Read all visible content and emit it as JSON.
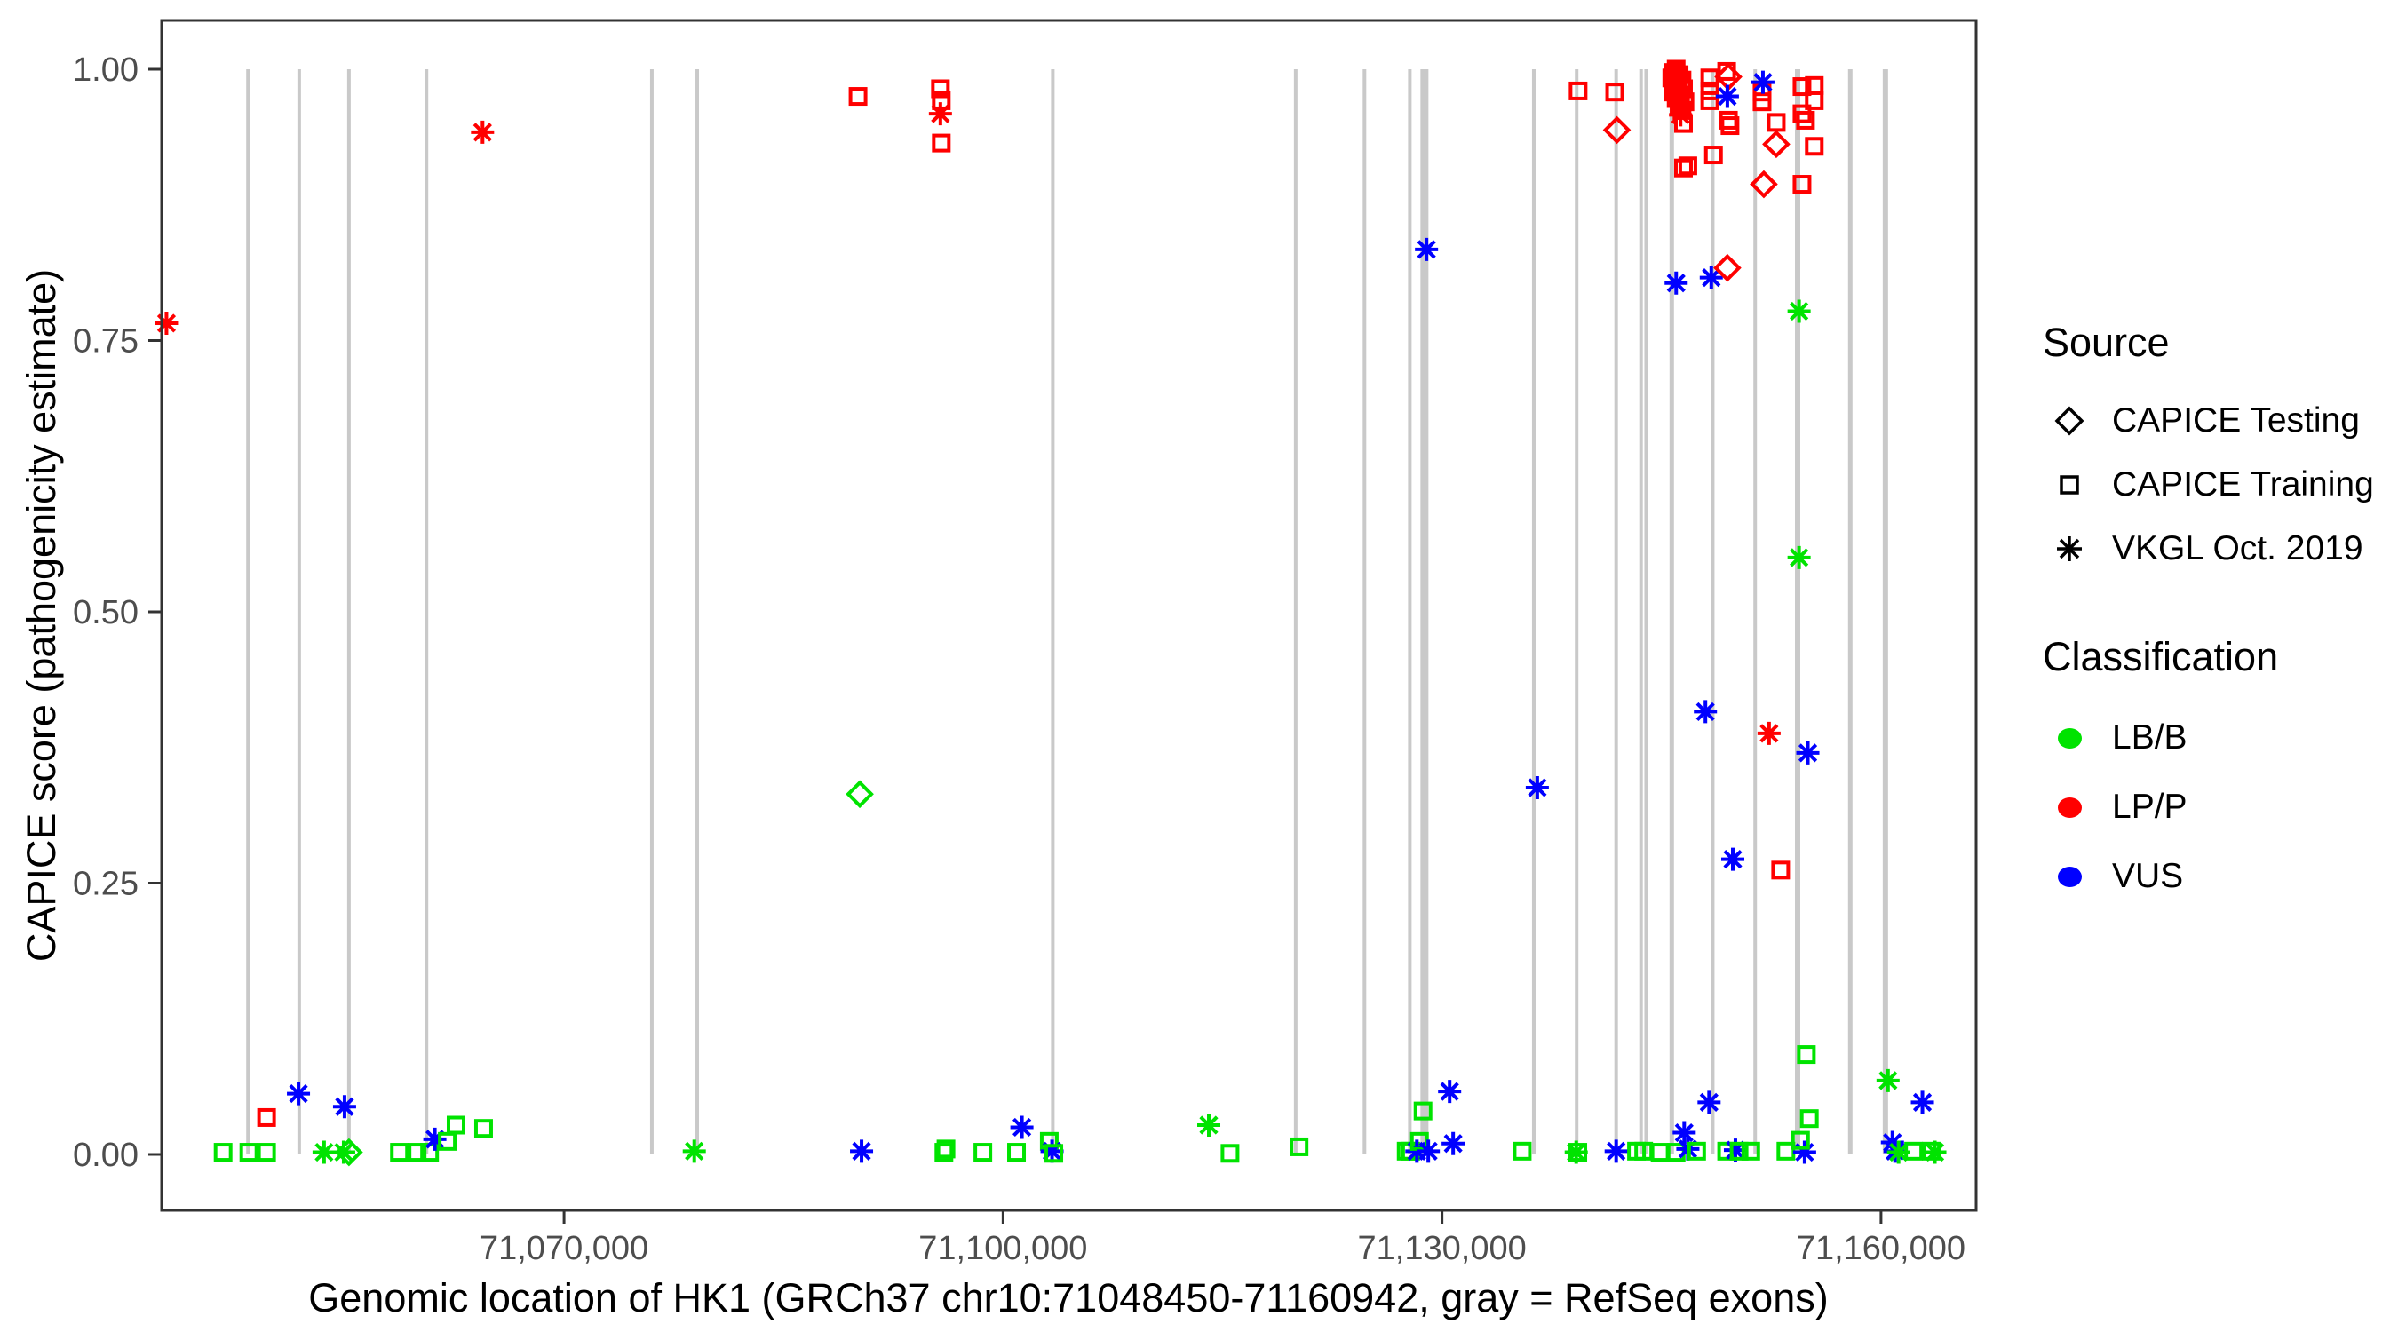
{
  "figure_name": "CAPICE score scatter plot for HK1",
  "axes": {
    "x_title": "Genomic location of HK1 (GRCh37 chr10:71048450-71160942, gray = RefSeq exons)",
    "y_title": "CAPICE score (pathogenicity estimate)"
  },
  "legend": {
    "source": {
      "title": "Source",
      "items": [
        {
          "label": "CAPICE Testing",
          "symbol": "diamond"
        },
        {
          "label": "CAPICE Training",
          "symbol": "square"
        },
        {
          "label": "VKGL Oct. 2019",
          "symbol": "asterisk"
        }
      ]
    },
    "classification": {
      "title": "Classification",
      "items": [
        {
          "label": "LB/B",
          "color": "#00E300"
        },
        {
          "label": "LP/P",
          "color": "#FF0000"
        },
        {
          "label": "VUS",
          "color": "#0000FF"
        }
      ]
    }
  },
  "chart_data": {
    "type": "scatter",
    "title": "",
    "xlabel": "Genomic location of HK1 (GRCh37 chr10:71048450-71160942, gray = RefSeq exons)",
    "ylabel": "CAPICE score (pathogenicity estimate)",
    "x_domain": [
      71042500,
      71166500
    ],
    "y_domain": [
      0.0,
      1.0
    ],
    "grid": "off",
    "legend_position": "right",
    "x_ticks": [
      {
        "value": 71070000,
        "label": "71,070,000"
      },
      {
        "value": 71100000,
        "label": "71,100,000"
      },
      {
        "value": 71130000,
        "label": "71,130,000"
      },
      {
        "value": 71160000,
        "label": "71,160,000"
      }
    ],
    "y_ticks": [
      {
        "value": 0.0,
        "label": "0.00"
      },
      {
        "value": 0.25,
        "label": "0.25"
      },
      {
        "value": 0.5,
        "label": "0.50"
      },
      {
        "value": 0.75,
        "label": "0.75"
      },
      {
        "value": 1.0,
        "label": "1.00"
      }
    ],
    "colors": {
      "LB/B": "#00E300",
      "LP/P": "#FF0000",
      "VUS": "#0000FF",
      "exon": "#C9C9C9",
      "axis": "#333333",
      "tick_label": "#4D4D4D"
    },
    "exons": [
      {
        "pos": 71048400,
        "w": 4
      },
      {
        "pos": 71051900,
        "w": 4
      },
      {
        "pos": 71055300,
        "w": 4
      },
      {
        "pos": 71060600,
        "w": 4
      },
      {
        "pos": 71076000,
        "w": 4
      },
      {
        "pos": 71079100,
        "w": 4
      },
      {
        "pos": 71103400,
        "w": 4
      },
      {
        "pos": 71120000,
        "w": 4
      },
      {
        "pos": 71124700,
        "w": 4
      },
      {
        "pos": 71127800,
        "w": 4
      },
      {
        "pos": 71128800,
        "w": 9
      },
      {
        "pos": 71136300,
        "w": 5
      },
      {
        "pos": 71139200,
        "w": 4
      },
      {
        "pos": 71141900,
        "w": 4
      },
      {
        "pos": 71143600,
        "w": 4
      },
      {
        "pos": 71143950,
        "w": 4
      },
      {
        "pos": 71145700,
        "w": 5
      },
      {
        "pos": 71148500,
        "w": 4
      },
      {
        "pos": 71151400,
        "w": 4
      },
      {
        "pos": 71154300,
        "w": 6
      },
      {
        "pos": 71157900,
        "w": 5
      },
      {
        "pos": 71160300,
        "w": 6
      }
    ],
    "points": [
      {
        "g": 71046700,
        "v": 0.002,
        "source": "training",
        "class": "LB/B"
      },
      {
        "g": 71048460,
        "v": 0.002,
        "source": "training",
        "class": "LB/B"
      },
      {
        "g": 71049670,
        "v": 0.002,
        "source": "training",
        "class": "LB/B"
      },
      {
        "g": 71049670,
        "v": 0.034,
        "source": "training",
        "class": "LP/P"
      },
      {
        "g": 71042830,
        "v": 0.766,
        "source": "vkgl",
        "class": "LP/P"
      },
      {
        "g": 71051850,
        "v": 0.056,
        "source": "vkgl",
        "class": "VUS"
      },
      {
        "g": 71053600,
        "v": 0.002,
        "source": "vkgl",
        "class": "LB/B"
      },
      {
        "g": 71054940,
        "v": 0.002,
        "source": "vkgl",
        "class": "LB/B"
      },
      {
        "g": 71055300,
        "v": 0.002,
        "source": "testing",
        "class": "LB/B"
      },
      {
        "g": 71055000,
        "v": 0.044,
        "source": "vkgl",
        "class": "VUS"
      },
      {
        "g": 71058750,
        "v": 0.002,
        "source": "training",
        "class": "LB/B"
      },
      {
        "g": 71059960,
        "v": 0.002,
        "source": "training",
        "class": "LB/B"
      },
      {
        "g": 71060810,
        "v": 0.002,
        "source": "training",
        "class": "LB/B"
      },
      {
        "g": 71061170,
        "v": 0.014,
        "source": "vkgl",
        "class": "VUS"
      },
      {
        "g": 71062020,
        "v": 0.012,
        "source": "training",
        "class": "LB/B"
      },
      {
        "g": 71062620,
        "v": 0.027,
        "source": "training",
        "class": "LB/B"
      },
      {
        "g": 71064500,
        "v": 0.024,
        "source": "training",
        "class": "LB/B"
      },
      {
        "g": 71064430,
        "v": 0.942,
        "source": "vkgl",
        "class": "LP/P"
      },
      {
        "g": 71078900,
        "v": 0.003,
        "source": "vkgl",
        "class": "LB/B"
      },
      {
        "g": 71090090,
        "v": 0.975,
        "source": "training",
        "class": "LP/P"
      },
      {
        "g": 71090210,
        "v": 0.332,
        "source": "testing",
        "class": "LB/B"
      },
      {
        "g": 71090330,
        "v": 0.003,
        "source": "vkgl",
        "class": "VUS"
      },
      {
        "g": 71095720,
        "v": 0.982,
        "source": "training",
        "class": "LP/P"
      },
      {
        "g": 71095780,
        "v": 0.971,
        "source": "training",
        "class": "LP/P"
      },
      {
        "g": 71095720,
        "v": 0.959,
        "source": "vkgl",
        "class": "LP/P"
      },
      {
        "g": 71095780,
        "v": 0.932,
        "source": "training",
        "class": "LP/P"
      },
      {
        "g": 71095960,
        "v": 0.002,
        "source": "training",
        "class": "LB/B"
      },
      {
        "g": 71096100,
        "v": 0.005,
        "source": "training",
        "class": "LB/B"
      },
      {
        "g": 71098620,
        "v": 0.002,
        "source": "training",
        "class": "LB/B"
      },
      {
        "g": 71100920,
        "v": 0.002,
        "source": "training",
        "class": "LB/B"
      },
      {
        "g": 71101290,
        "v": 0.025,
        "source": "vkgl",
        "class": "VUS"
      },
      {
        "g": 71103160,
        "v": 0.012,
        "source": "training",
        "class": "LB/B"
      },
      {
        "g": 71103350,
        "v": 0.003,
        "source": "vkgl",
        "class": "VUS"
      },
      {
        "g": 71103470,
        "v": 0.001,
        "source": "training",
        "class": "LB/B"
      },
      {
        "g": 71114060,
        "v": 0.027,
        "source": "vkgl",
        "class": "LB/B"
      },
      {
        "g": 71115510,
        "v": 0.001,
        "source": "training",
        "class": "LB/B"
      },
      {
        "g": 71120230,
        "v": 0.007,
        "source": "training",
        "class": "LB/B"
      },
      {
        "g": 71127550,
        "v": 0.003,
        "source": "training",
        "class": "LB/B"
      },
      {
        "g": 71127860,
        "v": 0.003,
        "source": "training",
        "class": "LB/B"
      },
      {
        "g": 71128280,
        "v": 0.003,
        "source": "vkgl",
        "class": "VUS"
      },
      {
        "g": 71128460,
        "v": 0.012,
        "source": "training",
        "class": "LB/B"
      },
      {
        "g": 71128700,
        "v": 0.04,
        "source": "training",
        "class": "LB/B"
      },
      {
        "g": 71129060,
        "v": 0.003,
        "source": "vkgl",
        "class": "VUS"
      },
      {
        "g": 71128940,
        "v": 0.834,
        "source": "vkgl",
        "class": "VUS"
      },
      {
        "g": 71130520,
        "v": 0.058,
        "source": "vkgl",
        "class": "VUS"
      },
      {
        "g": 71130760,
        "v": 0.01,
        "source": "vkgl",
        "class": "VUS"
      },
      {
        "g": 71135480,
        "v": 0.003,
        "source": "training",
        "class": "LB/B"
      },
      {
        "g": 71136510,
        "v": 0.338,
        "source": "vkgl",
        "class": "VUS"
      },
      {
        "g": 71139170,
        "v": 0.002,
        "source": "vkgl",
        "class": "LB/B"
      },
      {
        "g": 71139280,
        "v": 0.002,
        "source": "training",
        "class": "LB/B"
      },
      {
        "g": 71139300,
        "v": 0.98,
        "source": "training",
        "class": "LP/P"
      },
      {
        "g": 71141800,
        "v": 0.979,
        "source": "training",
        "class": "LP/P"
      },
      {
        "g": 71141950,
        "v": 0.944,
        "source": "testing",
        "class": "LP/P"
      },
      {
        "g": 71141900,
        "v": 0.003,
        "source": "vkgl",
        "class": "VUS"
      },
      {
        "g": 71143290,
        "v": 0.003,
        "source": "training",
        "class": "LB/B"
      },
      {
        "g": 71143780,
        "v": 0.003,
        "source": "training",
        "class": "LB/B"
      },
      {
        "g": 71144900,
        "v": 0.002,
        "source": "training",
        "class": "LB/B"
      },
      {
        "g": 71146000,
        "v": 0.002,
        "source": "training",
        "class": "LB/B"
      },
      {
        "g": 71146000,
        "v": 1.0,
        "source": "training",
        "class": "LP/P"
      },
      {
        "g": 71145800,
        "v": 0.997,
        "source": "training",
        "class": "LP/P"
      },
      {
        "g": 71146200,
        "v": 0.995,
        "source": "training",
        "class": "LP/P"
      },
      {
        "g": 71145700,
        "v": 0.992,
        "source": "training",
        "class": "LP/P"
      },
      {
        "g": 71146400,
        "v": 0.99,
        "source": "training",
        "class": "LP/P"
      },
      {
        "g": 71145900,
        "v": 0.987,
        "source": "training",
        "class": "LP/P"
      },
      {
        "g": 71146100,
        "v": 0.984,
        "source": "training",
        "class": "LP/P"
      },
      {
        "g": 71146500,
        "v": 0.982,
        "source": "training",
        "class": "LP/P"
      },
      {
        "g": 71145800,
        "v": 0.979,
        "source": "training",
        "class": "LP/P"
      },
      {
        "g": 71146300,
        "v": 0.976,
        "source": "training",
        "class": "LP/P"
      },
      {
        "g": 71146000,
        "v": 0.973,
        "source": "training",
        "class": "LP/P"
      },
      {
        "g": 71146600,
        "v": 0.97,
        "source": "training",
        "class": "LP/P"
      },
      {
        "g": 71146200,
        "v": 0.967,
        "source": "training",
        "class": "LP/P"
      },
      {
        "g": 71146050,
        "v": 0.99,
        "source": "vkgl",
        "class": "LP/P"
      },
      {
        "g": 71146300,
        "v": 0.958,
        "source": "vkgl",
        "class": "LP/P"
      },
      {
        "g": 71146400,
        "v": 0.962,
        "source": "training",
        "class": "LP/P"
      },
      {
        "g": 71146500,
        "v": 0.95,
        "source": "training",
        "class": "LP/P"
      },
      {
        "g": 71146500,
        "v": 0.909,
        "source": "training",
        "class": "LP/P"
      },
      {
        "g": 71146550,
        "v": 0.02,
        "source": "vkgl",
        "class": "VUS"
      },
      {
        "g": 71146800,
        "v": 0.005,
        "source": "vkgl",
        "class": "VUS"
      },
      {
        "g": 71146000,
        "v": 0.803,
        "source": "vkgl",
        "class": "VUS"
      },
      {
        "g": 71147400,
        "v": 0.003,
        "source": "training",
        "class": "LB/B"
      },
      {
        "g": 71148000,
        "v": 0.408,
        "source": "vkgl",
        "class": "VUS"
      },
      {
        "g": 71148250,
        "v": 0.048,
        "source": "vkgl",
        "class": "VUS"
      },
      {
        "g": 71148300,
        "v": 0.992,
        "source": "training",
        "class": "LP/P"
      },
      {
        "g": 71148300,
        "v": 0.98,
        "source": "training",
        "class": "LP/P"
      },
      {
        "g": 71148300,
        "v": 0.971,
        "source": "training",
        "class": "LP/P"
      },
      {
        "g": 71148400,
        "v": 0.808,
        "source": "vkgl",
        "class": "VUS"
      },
      {
        "g": 71148550,
        "v": 0.921,
        "source": "training",
        "class": "LP/P"
      },
      {
        "g": 71146800,
        "v": 0.911,
        "source": "training",
        "class": "LP/P"
      },
      {
        "g": 71149450,
        "v": 0.998,
        "source": "training",
        "class": "LP/P"
      },
      {
        "g": 71149570,
        "v": 0.993,
        "source": "testing",
        "class": "LP/P"
      },
      {
        "g": 71149500,
        "v": 0.975,
        "source": "vkgl",
        "class": "VUS"
      },
      {
        "g": 71149570,
        "v": 0.953,
        "source": "training",
        "class": "LP/P"
      },
      {
        "g": 71149680,
        "v": 0.948,
        "source": "training",
        "class": "LP/P"
      },
      {
        "g": 71149500,
        "v": 0.817,
        "source": "testing",
        "class": "LP/P"
      },
      {
        "g": 71149450,
        "v": 0.003,
        "source": "training",
        "class": "LB/B"
      },
      {
        "g": 71150050,
        "v": 0.004,
        "source": "vkgl",
        "class": "VUS"
      },
      {
        "g": 71149870,
        "v": 0.272,
        "source": "vkgl",
        "class": "VUS"
      },
      {
        "g": 71150300,
        "v": 0.003,
        "source": "training",
        "class": "LB/B"
      },
      {
        "g": 71151100,
        "v": 0.003,
        "source": "training",
        "class": "LB/B"
      },
      {
        "g": 71151870,
        "v": 0.979,
        "source": "training",
        "class": "LP/P"
      },
      {
        "g": 71151870,
        "v": 0.97,
        "source": "training",
        "class": "LP/P"
      },
      {
        "g": 71151930,
        "v": 0.988,
        "source": "vkgl",
        "class": "VUS"
      },
      {
        "g": 71151990,
        "v": 0.894,
        "source": "testing",
        "class": "LP/P"
      },
      {
        "g": 71152350,
        "v": 0.388,
        "source": "vkgl",
        "class": "LP/P"
      },
      {
        "g": 71152840,
        "v": 0.951,
        "source": "training",
        "class": "LP/P"
      },
      {
        "g": 71152840,
        "v": 0.931,
        "source": "testing",
        "class": "LP/P"
      },
      {
        "g": 71153140,
        "v": 0.262,
        "source": "training",
        "class": "LP/P"
      },
      {
        "g": 71153500,
        "v": 0.003,
        "source": "training",
        "class": "LB/B"
      },
      {
        "g": 71154600,
        "v": 0.984,
        "source": "training",
        "class": "LP/P"
      },
      {
        "g": 71155440,
        "v": 0.985,
        "source": "training",
        "class": "LP/P"
      },
      {
        "g": 71155440,
        "v": 0.971,
        "source": "training",
        "class": "LP/P"
      },
      {
        "g": 71154600,
        "v": 0.959,
        "source": "training",
        "class": "LP/P"
      },
      {
        "g": 71154840,
        "v": 0.953,
        "source": "training",
        "class": "LP/P"
      },
      {
        "g": 71155440,
        "v": 0.929,
        "source": "training",
        "class": "LP/P"
      },
      {
        "g": 71154600,
        "v": 0.894,
        "source": "training",
        "class": "LP/P"
      },
      {
        "g": 71154400,
        "v": 0.777,
        "source": "vkgl",
        "class": "LB/B"
      },
      {
        "g": 71154400,
        "v": 0.55,
        "source": "vkgl",
        "class": "LB/B"
      },
      {
        "g": 71155000,
        "v": 0.37,
        "source": "vkgl",
        "class": "VUS"
      },
      {
        "g": 71154780,
        "v": 0.002,
        "source": "vkgl",
        "class": "VUS"
      },
      {
        "g": 71154500,
        "v": 0.013,
        "source": "training",
        "class": "LB/B"
      },
      {
        "g": 71154900,
        "v": 0.092,
        "source": "training",
        "class": "LB/B"
      },
      {
        "g": 71155100,
        "v": 0.033,
        "source": "training",
        "class": "LB/B"
      },
      {
        "g": 71160480,
        "v": 0.068,
        "source": "vkgl",
        "class": "LB/B"
      },
      {
        "g": 71160780,
        "v": 0.011,
        "source": "vkgl",
        "class": "VUS"
      },
      {
        "g": 71160960,
        "v": 0.003,
        "source": "vkgl",
        "class": "VUS"
      },
      {
        "g": 71161200,
        "v": 0.002,
        "source": "vkgl",
        "class": "LB/B"
      },
      {
        "g": 71162230,
        "v": 0.003,
        "source": "training",
        "class": "LB/B"
      },
      {
        "g": 71162830,
        "v": 0.048,
        "source": "vkgl",
        "class": "VUS"
      },
      {
        "g": 71163440,
        "v": 0.003,
        "source": "training",
        "class": "LB/B"
      },
      {
        "g": 71163680,
        "v": 0.002,
        "source": "vkgl",
        "class": "LB/B"
      }
    ]
  }
}
